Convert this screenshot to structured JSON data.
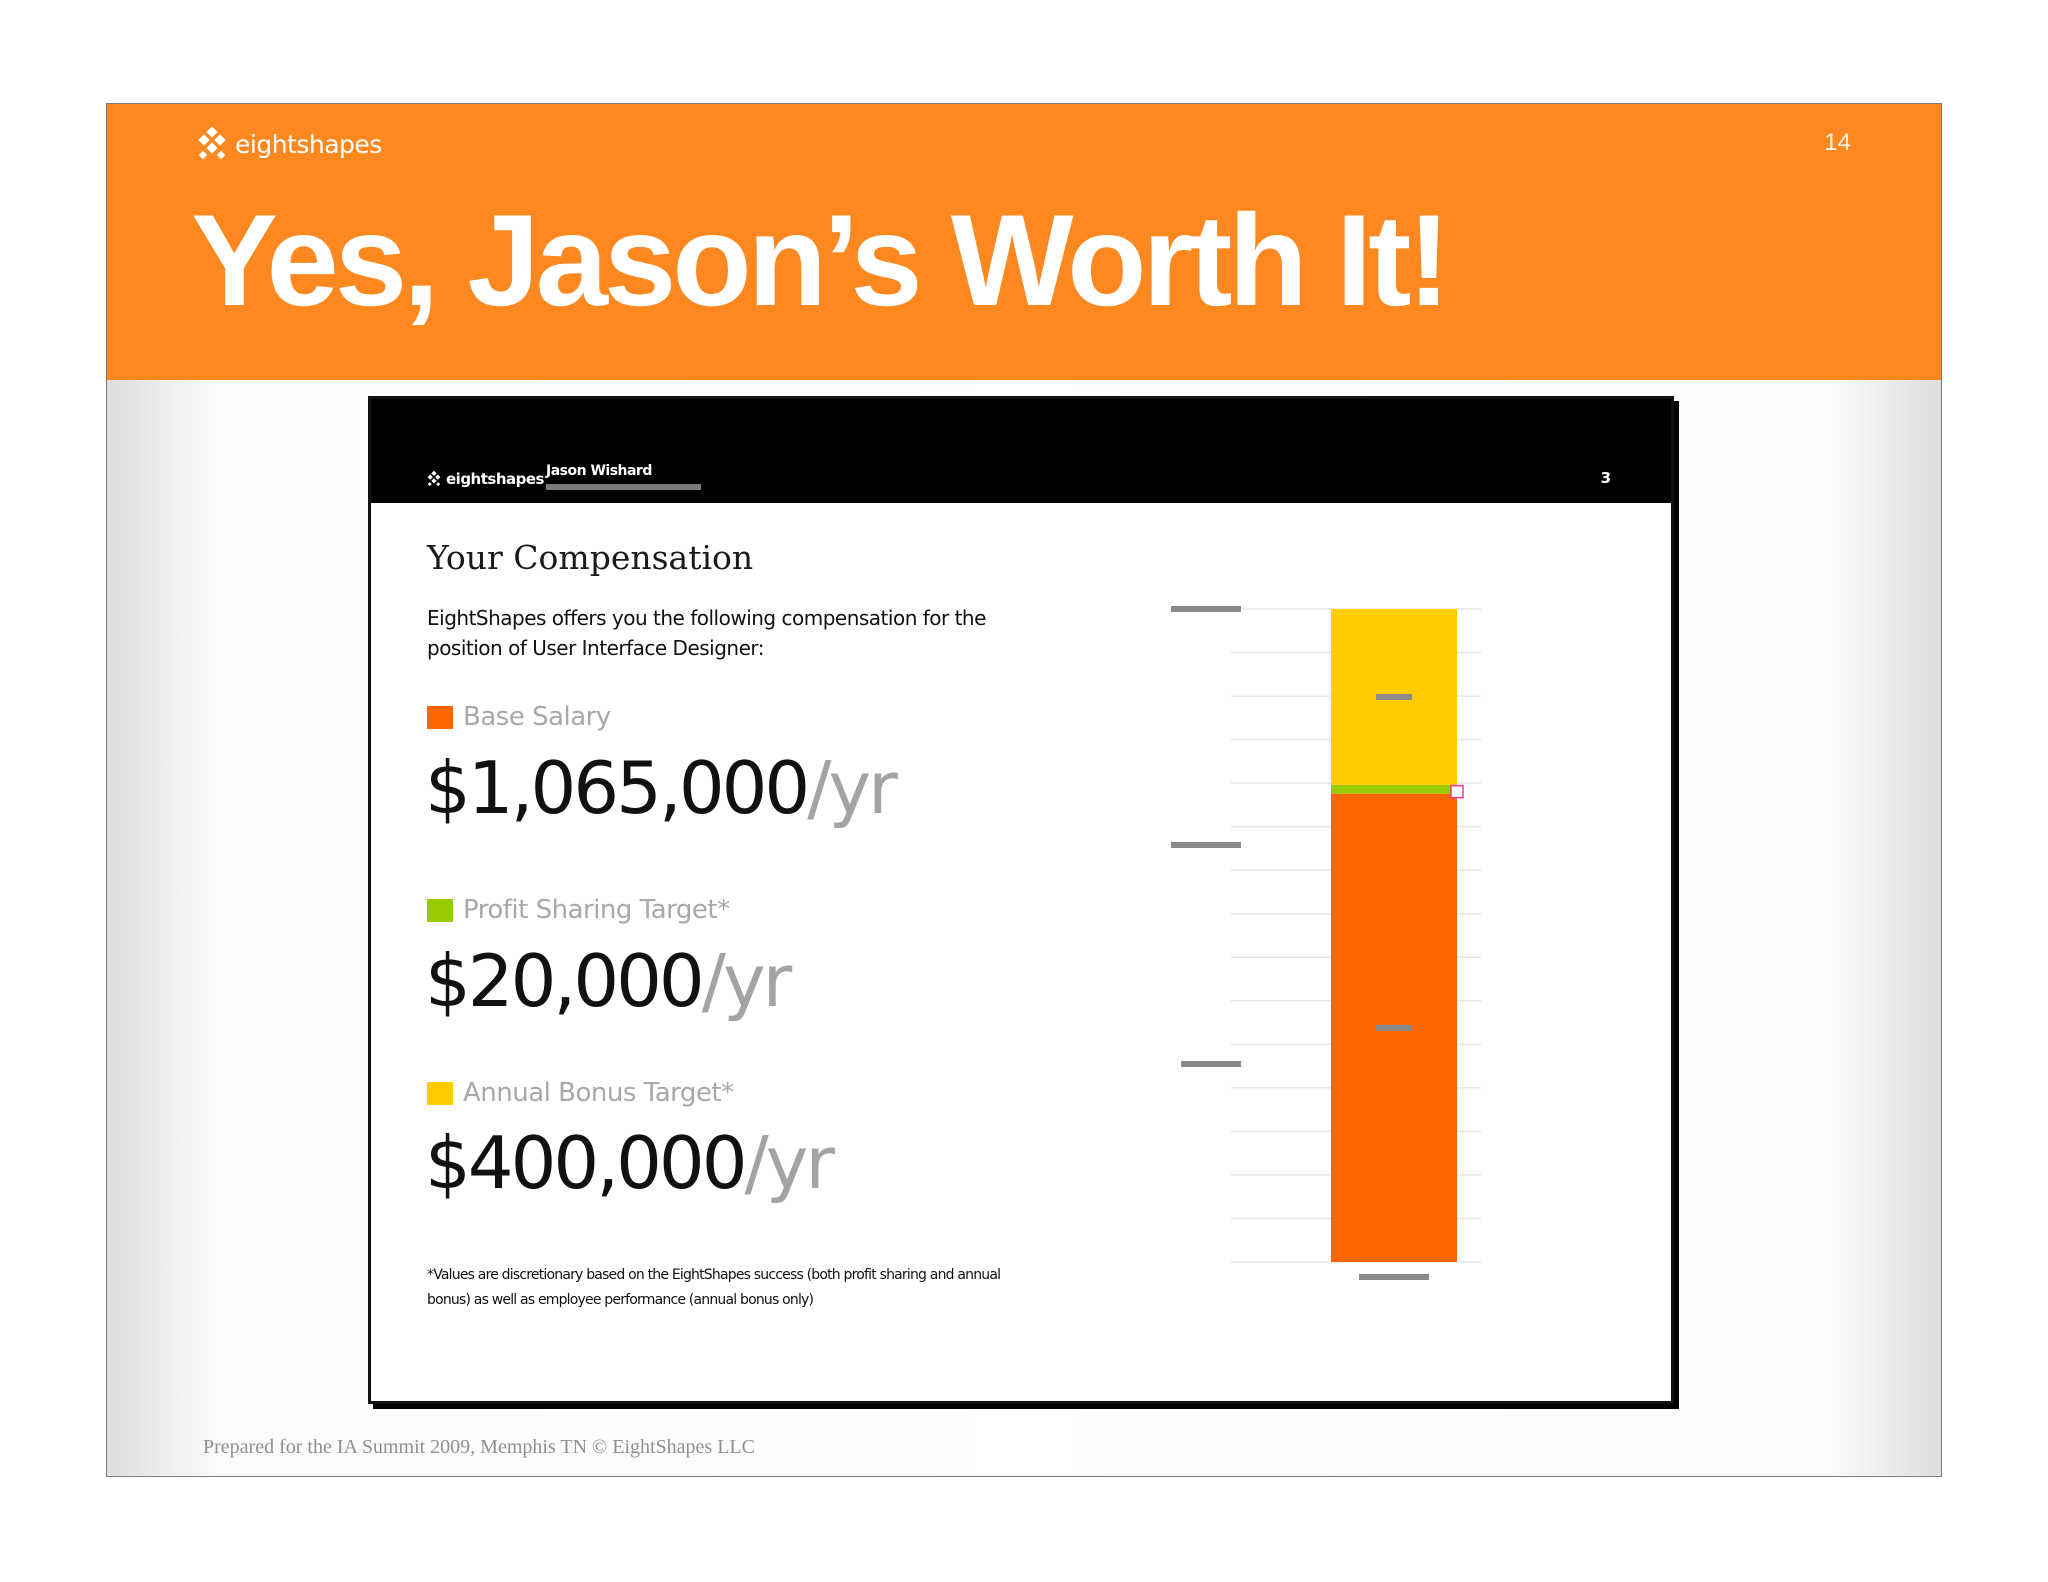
{
  "slide": {
    "brand": "eightshapes",
    "page_number": "14",
    "title": "Yes, Jason’s Worth It!",
    "footer": "Prepared for the IA Summit 2009, Memphis TN  © EightShapes LLC"
  },
  "document": {
    "brand": "eightshapes",
    "employee_name": "Jason Wishard",
    "page_number": "3",
    "heading": "Your Compensation",
    "intro": "EightShapes offers you the following compensation for the position of User Interface Designer:",
    "items": [
      {
        "label": "Base Salary",
        "amount": "$1,065,000",
        "unit": "/yr",
        "color": "#ff6600"
      },
      {
        "label": "Profit Sharing Target*",
        "amount": "$20,000",
        "unit": "/yr",
        "color": "#99cc00"
      },
      {
        "label": "Annual Bonus Target*",
        "amount": "$400,000",
        "unit": "/yr",
        "color": "#ffcc00"
      }
    ],
    "footnote": "*Values are discretionary based on the EightShapes success (both profit sharing and annual bonus) as well as employee performance (annual bonus only)"
  },
  "chart_data": {
    "type": "bar",
    "stacked": true,
    "orientation": "vertical",
    "categories": [
      ""
    ],
    "series": [
      {
        "name": "Base Salary",
        "values": [
          1065000
        ],
        "color": "#ff6600"
      },
      {
        "name": "Profit Sharing Target*",
        "values": [
          20000
        ],
        "color": "#99cc00"
      },
      {
        "name": "Annual Bonus Target*",
        "values": [
          400000
        ],
        "color": "#ffcc00"
      }
    ],
    "ylim": [
      0,
      1485000
    ],
    "grid": true,
    "legend": "none"
  }
}
